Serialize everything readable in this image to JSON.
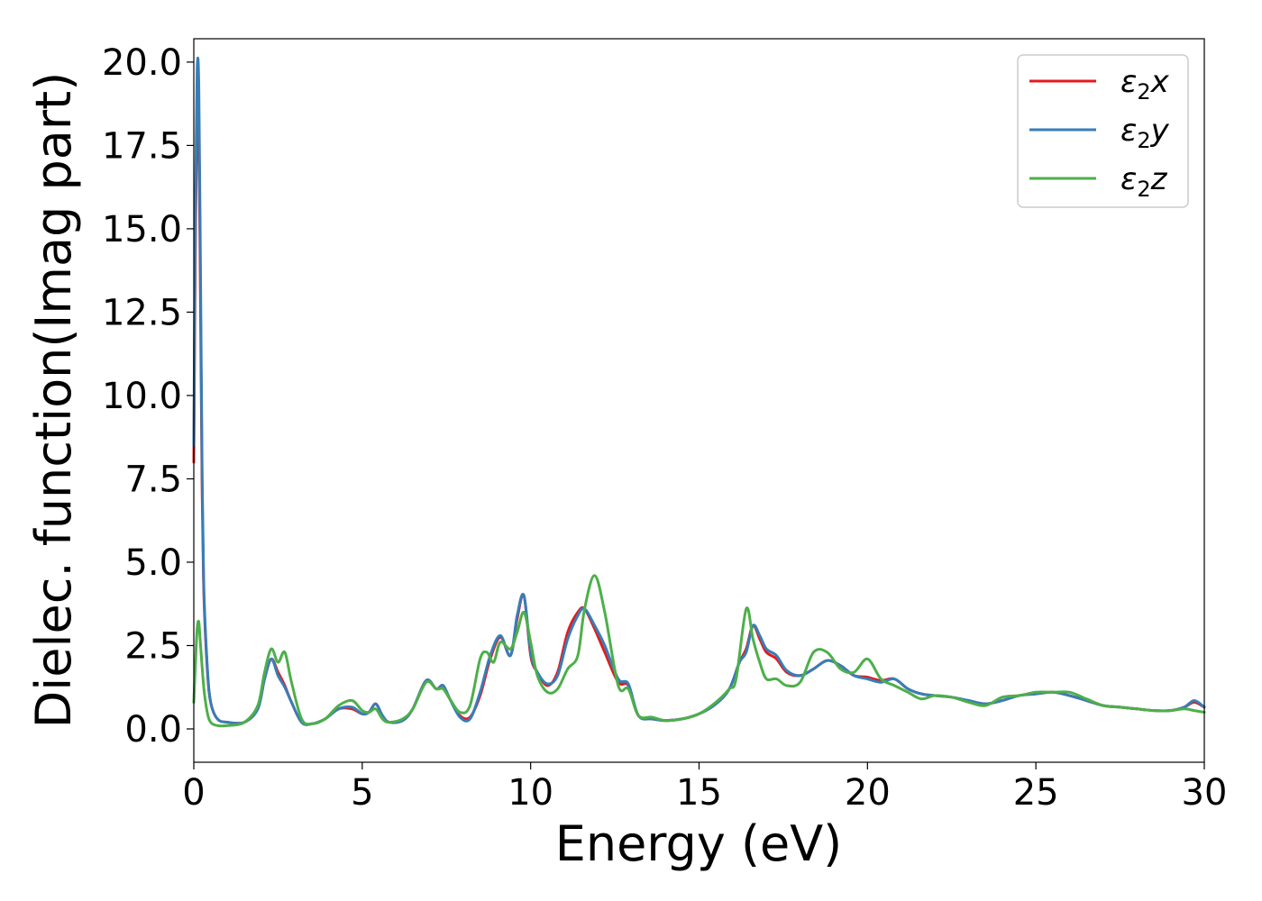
{
  "chart_data": {
    "type": "line",
    "xlabel": "Energy (eV)",
    "ylabel": "Dielec. function(Imag part)",
    "xlim": [
      0,
      30
    ],
    "ylim": [
      -1.0,
      20.7
    ],
    "xticks": [
      0,
      5,
      10,
      15,
      20,
      25,
      30
    ],
    "xtick_labels": [
      "0",
      "5",
      "10",
      "15",
      "20",
      "25",
      "30"
    ],
    "yticks": [
      0.0,
      2.5,
      5.0,
      7.5,
      10.0,
      12.5,
      15.0,
      17.5,
      20.0
    ],
    "ytick_labels": [
      "0.0",
      "2.5",
      "5.0",
      "7.5",
      "10.0",
      "12.5",
      "15.0",
      "17.5",
      "20.0"
    ],
    "grid": false,
    "legend_position": "top-right",
    "series": [
      {
        "name": "ε2x",
        "label_main": "ε",
        "label_sub": "2",
        "label_suffix": "x",
        "color": "#e41a1c",
        "x": [
          0.0,
          0.05,
          0.1,
          0.15,
          0.2,
          0.25,
          0.3,
          0.4,
          0.5,
          0.7,
          1.0,
          1.5,
          1.9,
          2.1,
          2.3,
          2.5,
          2.7,
          2.9,
          3.2,
          3.5,
          3.9,
          4.3,
          4.7,
          5.0,
          5.2,
          5.4,
          5.6,
          5.8,
          6.2,
          6.5,
          6.9,
          7.2,
          7.4,
          7.6,
          7.9,
          8.2,
          8.5,
          8.8,
          9.1,
          9.4,
          9.6,
          9.8,
          10.0,
          10.2,
          10.5,
          10.8,
          11.1,
          11.4,
          11.6,
          11.9,
          12.2,
          12.6,
          12.9,
          13.2,
          13.6,
          14.0,
          14.5,
          15.0,
          15.5,
          15.9,
          16.2,
          16.4,
          16.6,
          16.8,
          17.0,
          17.3,
          17.6,
          18.0,
          18.4,
          18.8,
          19.2,
          19.6,
          20.0,
          20.4,
          20.8,
          21.2,
          21.6,
          22.0,
          22.5,
          23.0,
          23.5,
          24.0,
          24.5,
          25.0,
          25.5,
          26.0,
          26.5,
          27.0,
          27.5,
          28.0,
          28.5,
          29.0,
          29.4,
          29.7,
          30.0
        ],
        "y": [
          8.0,
          15.0,
          18.6,
          18.0,
          12.5,
          7.0,
          4.0,
          1.8,
          0.8,
          0.3,
          0.2,
          0.2,
          0.6,
          1.5,
          2.1,
          1.7,
          1.3,
          0.8,
          0.2,
          0.15,
          0.3,
          0.6,
          0.6,
          0.45,
          0.5,
          0.75,
          0.4,
          0.2,
          0.25,
          0.6,
          1.45,
          1.2,
          1.3,
          0.9,
          0.4,
          0.35,
          1.0,
          2.1,
          2.75,
          2.2,
          3.3,
          4.0,
          2.2,
          1.7,
          1.3,
          1.7,
          2.9,
          3.5,
          3.6,
          3.0,
          2.3,
          1.4,
          1.3,
          0.4,
          0.3,
          0.25,
          0.3,
          0.45,
          0.75,
          1.2,
          2.0,
          2.4,
          3.1,
          2.7,
          2.3,
          2.1,
          1.7,
          1.6,
          1.8,
          2.05,
          1.9,
          1.6,
          1.55,
          1.45,
          1.5,
          1.2,
          1.05,
          1.0,
          0.95,
          0.85,
          0.75,
          0.85,
          1.0,
          1.05,
          1.1,
          1.0,
          0.85,
          0.7,
          0.65,
          0.6,
          0.55,
          0.55,
          0.65,
          0.8,
          0.65
        ]
      },
      {
        "name": "ε2y",
        "label_main": "ε",
        "label_sub": "2",
        "label_suffix": "y",
        "color": "#377eb8",
        "x": [
          0.0,
          0.05,
          0.1,
          0.15,
          0.2,
          0.25,
          0.3,
          0.4,
          0.5,
          0.7,
          1.0,
          1.5,
          1.9,
          2.1,
          2.3,
          2.5,
          2.7,
          2.9,
          3.2,
          3.5,
          3.9,
          4.3,
          4.7,
          5.0,
          5.2,
          5.4,
          5.6,
          5.8,
          6.2,
          6.5,
          6.9,
          7.2,
          7.4,
          7.6,
          7.9,
          8.2,
          8.5,
          8.8,
          9.1,
          9.4,
          9.6,
          9.8,
          10.0,
          10.2,
          10.5,
          10.8,
          11.1,
          11.4,
          11.6,
          11.9,
          12.2,
          12.6,
          12.9,
          13.2,
          13.6,
          14.0,
          14.5,
          15.0,
          15.5,
          15.9,
          16.2,
          16.4,
          16.6,
          16.8,
          17.0,
          17.3,
          17.6,
          18.0,
          18.4,
          18.8,
          19.2,
          19.6,
          20.0,
          20.4,
          20.8,
          21.2,
          21.6,
          22.0,
          22.5,
          23.0,
          23.5,
          24.0,
          24.5,
          25.0,
          25.5,
          26.0,
          26.5,
          27.0,
          27.5,
          28.0,
          28.5,
          29.0,
          29.4,
          29.7,
          30.0
        ],
        "y": [
          8.5,
          16.0,
          19.8,
          19.2,
          13.5,
          7.5,
          4.2,
          1.9,
          0.8,
          0.3,
          0.2,
          0.2,
          0.6,
          1.5,
          2.1,
          1.6,
          1.25,
          0.8,
          0.2,
          0.15,
          0.3,
          0.6,
          0.65,
          0.45,
          0.5,
          0.75,
          0.4,
          0.2,
          0.25,
          0.6,
          1.45,
          1.2,
          1.3,
          0.9,
          0.35,
          0.3,
          1.1,
          2.2,
          2.8,
          2.2,
          3.4,
          4.0,
          2.3,
          1.7,
          1.35,
          1.6,
          2.7,
          3.4,
          3.6,
          3.1,
          2.5,
          1.5,
          1.35,
          0.4,
          0.3,
          0.25,
          0.3,
          0.45,
          0.75,
          1.2,
          2.0,
          2.3,
          3.1,
          2.8,
          2.4,
          2.2,
          1.75,
          1.6,
          1.8,
          2.05,
          1.9,
          1.6,
          1.5,
          1.4,
          1.5,
          1.2,
          1.05,
          1.0,
          0.95,
          0.85,
          0.75,
          0.85,
          1.0,
          1.05,
          1.1,
          1.0,
          0.85,
          0.7,
          0.65,
          0.6,
          0.55,
          0.55,
          0.65,
          0.85,
          0.65
        ]
      },
      {
        "name": "ε2z",
        "label_main": "ε",
        "label_sub": "2",
        "label_suffix": "z",
        "color": "#4daf4a",
        "x": [
          0.0,
          0.05,
          0.1,
          0.15,
          0.2,
          0.3,
          0.4,
          0.5,
          0.7,
          1.0,
          1.5,
          1.9,
          2.1,
          2.3,
          2.5,
          2.7,
          2.9,
          3.2,
          3.5,
          3.9,
          4.3,
          4.7,
          5.0,
          5.2,
          5.4,
          5.6,
          5.8,
          6.2,
          6.5,
          6.9,
          7.2,
          7.4,
          7.6,
          7.9,
          8.2,
          8.5,
          8.7,
          8.9,
          9.1,
          9.4,
          9.6,
          9.8,
          10.0,
          10.2,
          10.5,
          10.8,
          11.1,
          11.4,
          11.6,
          11.9,
          12.2,
          12.6,
          12.9,
          13.2,
          13.6,
          14.0,
          14.5,
          15.0,
          15.5,
          15.9,
          16.1,
          16.4,
          16.6,
          16.8,
          17.0,
          17.3,
          17.6,
          18.0,
          18.4,
          18.8,
          19.2,
          19.6,
          20.0,
          20.4,
          20.8,
          21.2,
          21.6,
          22.0,
          22.5,
          23.0,
          23.5,
          24.0,
          24.5,
          25.0,
          25.5,
          26.0,
          26.5,
          27.0,
          27.5,
          28.0,
          28.5,
          29.0,
          29.4,
          29.7,
          30.0
        ],
        "y": [
          0.8,
          2.0,
          3.0,
          3.2,
          2.5,
          1.2,
          0.5,
          0.2,
          0.1,
          0.1,
          0.2,
          0.7,
          1.7,
          2.4,
          2.0,
          2.3,
          1.4,
          0.3,
          0.15,
          0.3,
          0.7,
          0.85,
          0.55,
          0.5,
          0.6,
          0.3,
          0.2,
          0.3,
          0.6,
          1.4,
          1.2,
          1.2,
          0.9,
          0.5,
          0.7,
          2.1,
          2.3,
          2.0,
          2.6,
          2.4,
          2.9,
          3.5,
          2.6,
          1.6,
          1.1,
          1.2,
          1.8,
          2.2,
          3.6,
          4.6,
          3.5,
          1.3,
          1.2,
          0.4,
          0.35,
          0.25,
          0.3,
          0.45,
          0.8,
          1.2,
          1.5,
          3.6,
          2.7,
          2.0,
          1.5,
          1.5,
          1.3,
          1.4,
          2.3,
          2.3,
          1.8,
          1.7,
          2.1,
          1.5,
          1.3,
          1.1,
          0.9,
          1.0,
          0.95,
          0.8,
          0.7,
          0.95,
          1.0,
          1.1,
          1.1,
          1.1,
          0.9,
          0.7,
          0.65,
          0.6,
          0.55,
          0.55,
          0.6,
          0.55,
          0.5
        ]
      }
    ]
  }
}
